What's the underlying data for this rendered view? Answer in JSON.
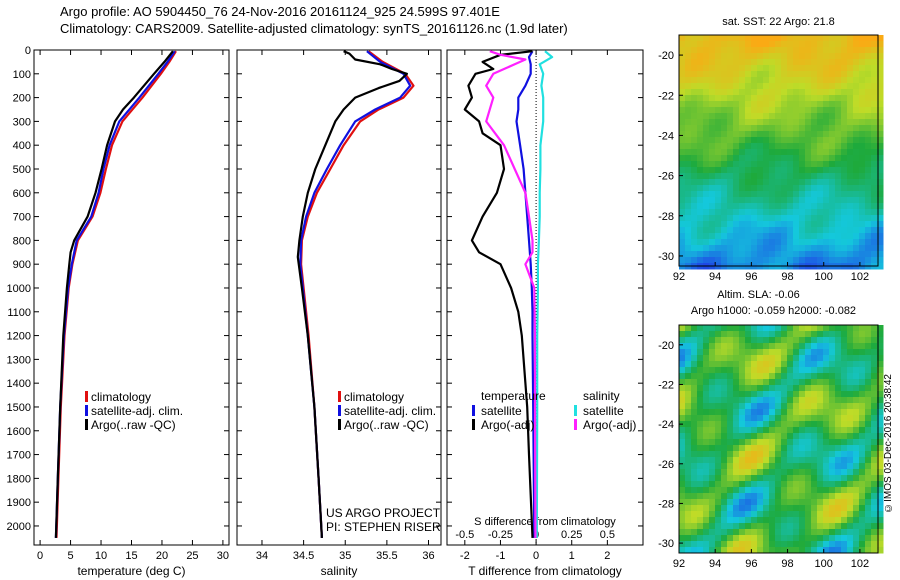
{
  "header": {
    "line1": "Argo profile: AO 5904450_76 24-Nov-2016 20161124_925 24.599S 97.401E",
    "line2": "Climatology: CARS2009. Satellite-adjusted climatology: synTS_20161126.nc (1.9d later)"
  },
  "side_stamp": "©IMOS 03-Dec-2016 20:38:42",
  "colors": {
    "clim": "#e01010",
    "sat": "#1010e0",
    "argo": "#000000",
    "sat_s": "#20e0e0",
    "argo_s": "#ff20ff"
  },
  "chart_data": [
    {
      "type": "line",
      "name": "temperature",
      "xlabel": "temperature (deg C)",
      "xlim": [
        -1,
        31
      ],
      "xticks": [
        "0",
        "5",
        "10",
        "15",
        "20",
        "25",
        "30"
      ],
      "xtick_values": [
        0,
        5,
        10,
        15,
        20,
        25,
        30
      ],
      "ylim": [
        2080,
        0
      ],
      "yticks": [
        "0",
        "100",
        "200",
        "300",
        "400",
        "500",
        "600",
        "700",
        "800",
        "900",
        "1000",
        "1100",
        "1200",
        "1300",
        "1400",
        "1500",
        "1600",
        "1700",
        "1800",
        "1900",
        "2000"
      ],
      "legend": [
        "climatology",
        "satellite-adj. clim.",
        "Argo(..raw -QC)"
      ],
      "series": [
        {
          "name": "climatology",
          "color": "clim",
          "depth": [
            5,
            50,
            100,
            200,
            300,
            400,
            500,
            600,
            700,
            800,
            900,
            1000,
            1200,
            1500,
            1800,
            2050
          ],
          "values": [
            22.3,
            21.2,
            19.8,
            16.8,
            13.5,
            11.8,
            10.8,
            9.9,
            8.6,
            6.2,
            5.3,
            4.7,
            4.0,
            3.4,
            3.0,
            2.7
          ]
        },
        {
          "name": "satellite-adj. clim.",
          "color": "sat",
          "depth": [
            5,
            50,
            100,
            200,
            300,
            400,
            500,
            600,
            700,
            800,
            900,
            1000,
            1200,
            1500,
            1800,
            2050
          ],
          "values": [
            22.1,
            20.9,
            19.4,
            16.3,
            13.0,
            11.4,
            10.4,
            9.6,
            8.4,
            6.0,
            5.2,
            4.6,
            3.9,
            3.3,
            2.9,
            2.6
          ]
        },
        {
          "name": "Argo(..raw -QC)",
          "color": "argo",
          "depth": [
            5,
            50,
            100,
            200,
            250,
            300,
            400,
            500,
            600,
            700,
            800,
            850,
            900,
            1000,
            1200,
            1500,
            1800,
            2050
          ],
          "values": [
            21.8,
            20.4,
            18.7,
            15.4,
            13.6,
            12.3,
            11.0,
            10.1,
            9.1,
            7.8,
            5.6,
            5.0,
            4.8,
            4.4,
            3.8,
            3.3,
            2.9,
            2.6
          ]
        }
      ]
    },
    {
      "type": "line",
      "name": "salinity",
      "xlabel": "salinity",
      "xlim": [
        33.7,
        36.15
      ],
      "xticks": [
        "34",
        "34.5",
        "35",
        "35.5",
        "36"
      ],
      "xtick_values": [
        34,
        34.5,
        35,
        35.5,
        36
      ],
      "ylim": [
        2080,
        0
      ],
      "legend": [
        "climatology",
        "satellite-adj. clim.",
        "Argo(..raw -QC)"
      ],
      "annotation": [
        "US ARGO PROJECT",
        "PI: STEPHEN RISER"
      ],
      "series": [
        {
          "name": "climatology",
          "color": "clim",
          "depth": [
            5,
            50,
            100,
            150,
            200,
            250,
            300,
            400,
            500,
            600,
            700,
            800,
            900,
            1000,
            1200,
            1500,
            1800,
            2050
          ],
          "values": [
            35.28,
            35.45,
            35.72,
            35.82,
            35.7,
            35.4,
            35.18,
            34.98,
            34.82,
            34.66,
            34.55,
            34.48,
            34.47,
            34.5,
            34.56,
            34.63,
            34.68,
            34.72
          ]
        },
        {
          "name": "satellite-adj. clim.",
          "color": "sat",
          "depth": [
            5,
            50,
            100,
            150,
            200,
            250,
            300,
            400,
            500,
            600,
            700,
            800,
            900,
            1000,
            1200,
            1500,
            1800,
            2050
          ],
          "values": [
            35.26,
            35.42,
            35.7,
            35.78,
            35.66,
            35.36,
            35.12,
            34.94,
            34.78,
            34.63,
            34.53,
            34.47,
            34.46,
            34.49,
            34.55,
            34.63,
            34.68,
            34.72
          ]
        },
        {
          "name": "Argo(..raw -QC)",
          "color": "argo",
          "depth": [
            5,
            15,
            40,
            60,
            80,
            100,
            130,
            160,
            200,
            250,
            300,
            400,
            500,
            600,
            700,
            800,
            870,
            1000,
            1200,
            1500,
            1800,
            2050
          ],
          "values": [
            34.98,
            35.05,
            35.12,
            35.42,
            35.56,
            35.74,
            35.65,
            35.4,
            35.12,
            34.98,
            34.88,
            34.76,
            34.64,
            34.55,
            34.49,
            34.45,
            34.43,
            34.48,
            34.55,
            34.63,
            34.68,
            34.72
          ]
        }
      ]
    },
    {
      "type": "line",
      "name": "differences",
      "xlabel": "T difference from climatology",
      "xlabel_top": "S difference from climatology",
      "xlim": [
        -2.5,
        3
      ],
      "xticks": [
        "-2",
        "-1",
        "0",
        "1",
        "2"
      ],
      "xtick_values": [
        -2,
        -1,
        0,
        1,
        2
      ],
      "xticks_s": [
        "-0.5",
        "-0.25",
        "0",
        "0.25",
        "0.5"
      ],
      "xtick_values_s": [
        -0.5,
        -0.25,
        0,
        0.25,
        0.5
      ],
      "ylim": [
        2080,
        0
      ],
      "legend_titles": [
        "temperature",
        "salinity"
      ],
      "legend": [
        "satellite",
        "Argo(-adj)",
        "satellite",
        "Argo(-adj)"
      ],
      "series": [
        {
          "name": "satellite",
          "color": "sat",
          "depth": [
            5,
            30,
            60,
            100,
            150,
            200,
            250,
            300,
            400,
            500,
            600,
            700,
            800,
            900,
            1000,
            1100,
            1200,
            1500,
            2050
          ],
          "values": [
            -0.1,
            -0.2,
            -0.15,
            -0.15,
            -0.3,
            -0.5,
            -0.5,
            -0.55,
            -0.45,
            -0.35,
            -0.3,
            -0.25,
            -0.2,
            -0.15,
            -0.12,
            -0.1,
            -0.1,
            -0.08,
            -0.05
          ]
        },
        {
          "name": "Argo(-adj)",
          "color": "argo",
          "depth": [
            5,
            20,
            50,
            80,
            100,
            150,
            200,
            250,
            300,
            350,
            400,
            500,
            600,
            700,
            800,
            850,
            900,
            1000,
            1100,
            1200,
            1400,
            1500,
            1700,
            2050
          ],
          "values": [
            -0.1,
            -1.0,
            -1.5,
            -1.2,
            -1.7,
            -1.9,
            -1.8,
            -2.0,
            -1.6,
            -1.5,
            -1.0,
            -0.9,
            -1.1,
            -1.5,
            -1.8,
            -1.6,
            -1.0,
            -0.7,
            -0.5,
            -0.4,
            -0.3,
            -0.25,
            -0.2,
            -0.1
          ]
        },
        {
          "name": "satellite",
          "color": "sat_s",
          "depth": [
            5,
            30,
            60,
            100,
            150,
            200,
            300,
            400,
            500,
            600,
            700,
            800,
            900,
            1000,
            1200,
            1500,
            2050
          ],
          "values": [
            0.25,
            0.45,
            0.1,
            0.2,
            0.15,
            0.2,
            0.2,
            0.12,
            0.12,
            0.1,
            0.1,
            0.08,
            0.05,
            0.05,
            0.03,
            0.03,
            0.02
          ]
        },
        {
          "name": "Argo(-adj)",
          "color": "argo_s",
          "depth": [
            5,
            20,
            40,
            60,
            80,
            100,
            150,
            200,
            300,
            400,
            500,
            600,
            700,
            800,
            850,
            900,
            1000,
            1200,
            1500,
            2050
          ],
          "values": [
            -1.3,
            -1.0,
            -0.3,
            -0.6,
            -0.9,
            -1.2,
            -1.4,
            -1.2,
            -1.4,
            -0.9,
            -0.6,
            -0.3,
            -0.2,
            -0.1,
            -0.1,
            -0.3,
            -0.05,
            -0.03,
            -0.03,
            -0.02
          ]
        }
      ]
    },
    {
      "type": "heatmap",
      "name": "sst-map",
      "title": "sat. SST: 22 Argo: 21.8",
      "xlim": [
        92,
        103
      ],
      "xticks": [
        "92",
        "94",
        "96",
        "98",
        "100",
        "102"
      ],
      "ylim": [
        -30.5,
        -19
      ],
      "yticks": [
        "-20",
        "-22",
        "-24",
        "-26",
        "-28",
        "-30"
      ]
    },
    {
      "type": "heatmap",
      "name": "sla-map",
      "title": "Altim. SLA: -0.06",
      "subtitle": "Argo h1000: -0.059 h2000: -0.082",
      "xlim": [
        92,
        103
      ],
      "xticks": [
        "92",
        "94",
        "96",
        "98",
        "100",
        "102"
      ],
      "ylim": [
        -30.5,
        -19
      ],
      "yticks": [
        "-20",
        "-22",
        "-24",
        "-26",
        "-28",
        "-30"
      ]
    }
  ]
}
